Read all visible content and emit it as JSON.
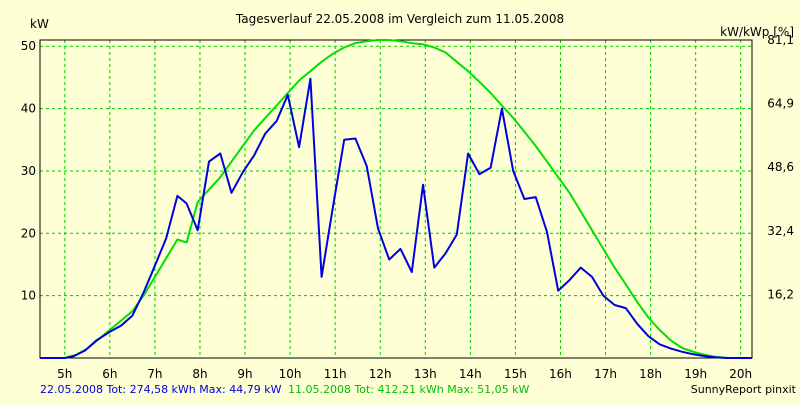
{
  "chart_data": {
    "type": "line",
    "title": "Tagesverlauf 22.05.2008 im Vergleich zum 11.05.2008",
    "ylabel_left": "kW",
    "ylabel_right": "kW/kWp [%]",
    "xlim": [
      4.45,
      20.25
    ],
    "ylim": [
      0,
      51
    ],
    "grid": true,
    "x_ticks": [
      5,
      6,
      7,
      8,
      9,
      10,
      11,
      12,
      13,
      14,
      15,
      16,
      17,
      18,
      19,
      20
    ],
    "x_tick_labels": [
      "5h",
      "6h",
      "7h",
      "8h",
      "9h",
      "10h",
      "11h",
      "12h",
      "13h",
      "14h",
      "15h",
      "16h",
      "17h",
      "18h",
      "19h",
      "20h"
    ],
    "y_ticks_left": [
      10,
      20,
      30,
      40,
      50
    ],
    "y_tick_labels_left": [
      "10",
      "20",
      "30",
      "40",
      "50"
    ],
    "y_ticks_right": [
      10.2,
      20.4,
      30.6,
      40.8,
      51
    ],
    "y_tick_labels_right": [
      "16,2",
      "32,4",
      "48,6",
      "64,9",
      "81,1"
    ],
    "series": [
      {
        "name": "22.05.2008",
        "color": "#0000e0",
        "x": [
          4.45,
          5.0,
          5.2,
          5.45,
          5.7,
          6.0,
          6.25,
          6.5,
          6.75,
          7.0,
          7.25,
          7.5,
          7.7,
          7.95,
          8.2,
          8.45,
          8.7,
          8.95,
          9.2,
          9.45,
          9.7,
          9.95,
          10.2,
          10.45,
          10.7,
          10.95,
          11.2,
          11.45,
          11.7,
          11.95,
          12.2,
          12.45,
          12.7,
          12.95,
          13.2,
          13.45,
          13.7,
          13.95,
          14.2,
          14.45,
          14.7,
          14.95,
          15.2,
          15.45,
          15.7,
          15.95,
          16.2,
          16.45,
          16.7,
          16.95,
          17.2,
          17.45,
          17.7,
          17.95,
          18.2,
          18.45,
          18.7,
          18.95,
          19.2,
          19.45,
          19.7,
          20.0,
          20.25
        ],
        "values": [
          0,
          0,
          0.3,
          1.2,
          2.8,
          4.2,
          5.2,
          6.8,
          10.5,
          14.8,
          19.2,
          26.0,
          24.8,
          20.5,
          31.5,
          32.8,
          26.5,
          29.8,
          32.5,
          36.0,
          38.0,
          42.2,
          33.8,
          44.8,
          13.0,
          24.2,
          35.0,
          35.2,
          30.8,
          20.8,
          15.8,
          17.5,
          13.8,
          27.8,
          14.5,
          16.8,
          19.8,
          32.8,
          29.5,
          30.5,
          40.0,
          30.0,
          25.5,
          25.8,
          20.2,
          10.8,
          12.5,
          14.5,
          13.0,
          10.0,
          8.5,
          8.0,
          5.5,
          3.5,
          2.2,
          1.5,
          1.0,
          0.6,
          0.3,
          0.1,
          0,
          0,
          0
        ]
      },
      {
        "name": "11.05.2008",
        "color": "#00e000",
        "x": [
          4.45,
          5.0,
          5.25,
          5.5,
          5.75,
          6.0,
          6.25,
          6.5,
          6.75,
          7.0,
          7.25,
          7.5,
          7.7,
          7.95,
          8.2,
          8.45,
          8.7,
          8.95,
          9.2,
          9.45,
          9.7,
          9.95,
          10.2,
          10.45,
          10.7,
          10.95,
          11.2,
          11.45,
          11.7,
          11.95,
          12.2,
          12.45,
          12.7,
          12.95,
          13.2,
          13.45,
          13.7,
          13.95,
          14.2,
          14.45,
          14.7,
          14.95,
          15.2,
          15.45,
          15.7,
          15.95,
          16.2,
          16.45,
          16.7,
          16.95,
          17.2,
          17.45,
          17.7,
          17.95,
          18.2,
          18.45,
          18.7,
          18.95,
          19.2,
          19.45,
          19.7,
          20.0,
          20.25
        ],
        "values": [
          0,
          0,
          0.5,
          1.5,
          3.0,
          4.5,
          6.0,
          7.5,
          10.0,
          13.0,
          16.0,
          19.0,
          18.5,
          25.0,
          27.0,
          29.0,
          31.5,
          34.0,
          36.5,
          38.5,
          40.5,
          42.5,
          44.5,
          46.0,
          47.5,
          48.8,
          49.8,
          50.5,
          50.8,
          51.0,
          51.0,
          50.8,
          50.5,
          50.3,
          49.8,
          49.0,
          47.5,
          46.0,
          44.3,
          42.5,
          40.5,
          38.5,
          36.3,
          34.0,
          31.5,
          29.0,
          26.5,
          23.5,
          20.5,
          17.5,
          14.5,
          11.8,
          9.0,
          6.5,
          4.5,
          2.8,
          1.6,
          1.0,
          0.5,
          0.2,
          0,
          0,
          0
        ]
      }
    ],
    "footer": {
      "s1_text": "22.05.2008 Tot: 274,58 kWh Max: 44,79 kW",
      "s2_text": "11.05.2008 Tot: 412,21 kWh Max: 51,05 kW",
      "credit": "SunnyReport pinxit"
    }
  }
}
